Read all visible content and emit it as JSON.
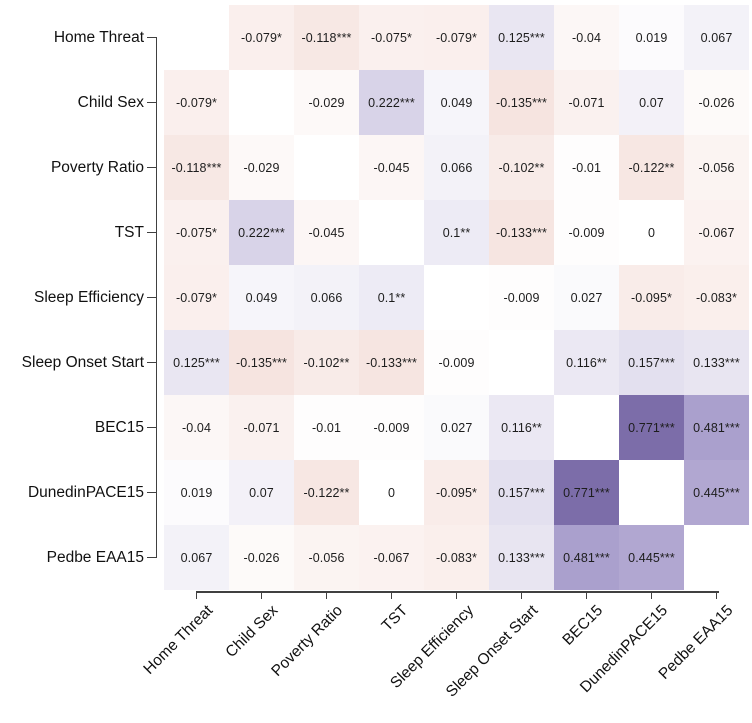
{
  "chart_data": {
    "type": "heatmap",
    "title": "",
    "subtitle": "",
    "xlabel": "",
    "ylabel": "",
    "legend": "none",
    "description": "Correlation matrix heatmap; blank white diagonal; asterisks denote significance (* p<.05, ** p<.01, *** p<.001); negative correlations shaded warm red-pink, positive correlations shaded purple.",
    "variables": [
      "Home Threat",
      "Child Sex",
      "Poverty Ratio",
      "TST",
      "Sleep Efficiency",
      "Sleep Onset Start",
      "BEC15",
      "DunedinPACE15",
      "Pedbe EAA15"
    ],
    "values": [
      [
        null,
        -0.079,
        -0.118,
        -0.075,
        -0.079,
        0.125,
        -0.04,
        0.019,
        0.067
      ],
      [
        -0.079,
        null,
        -0.029,
        0.222,
        0.049,
        -0.135,
        -0.071,
        0.07,
        -0.026
      ],
      [
        -0.118,
        -0.029,
        null,
        -0.045,
        0.066,
        -0.102,
        -0.01,
        -0.122,
        -0.056
      ],
      [
        -0.075,
        0.222,
        -0.045,
        null,
        0.1,
        -0.133,
        -0.009,
        0,
        -0.067
      ],
      [
        -0.079,
        0.049,
        0.066,
        0.1,
        null,
        -0.009,
        0.027,
        -0.095,
        -0.083
      ],
      [
        0.125,
        -0.135,
        -0.102,
        -0.133,
        -0.009,
        null,
        0.116,
        0.157,
        0.133
      ],
      [
        -0.04,
        -0.071,
        -0.01,
        -0.009,
        0.027,
        0.116,
        null,
        0.771,
        0.481
      ],
      [
        0.019,
        0.07,
        -0.122,
        0,
        -0.095,
        0.157,
        0.771,
        null,
        0.445
      ],
      [
        0.067,
        -0.026,
        -0.056,
        -0.067,
        -0.083,
        0.133,
        0.481,
        0.445,
        null
      ]
    ],
    "labels": [
      [
        "",
        "-0.079*",
        "-0.118***",
        "-0.075*",
        "-0.079*",
        "0.125***",
        "-0.04",
        "0.019",
        "0.067"
      ],
      [
        "-0.079*",
        "",
        "-0.029",
        "0.222***",
        "0.049",
        "-0.135***",
        "-0.071",
        "0.07",
        "-0.026"
      ],
      [
        "-0.118***",
        "-0.029",
        "",
        "-0.045",
        "0.066",
        "-0.102**",
        "-0.01",
        "-0.122**",
        "-0.056"
      ],
      [
        "-0.075*",
        "0.222***",
        "-0.045",
        "",
        "0.1**",
        "-0.133***",
        "-0.009",
        "0",
        "-0.067"
      ],
      [
        "-0.079*",
        "0.049",
        "0.066",
        "0.1**",
        "",
        "-0.009",
        "0.027",
        "-0.095*",
        "-0.083*"
      ],
      [
        "0.125***",
        "-0.135***",
        "-0.102**",
        "-0.133***",
        "-0.009",
        "",
        "0.116**",
        "0.157***",
        "0.133***"
      ],
      [
        "-0.04",
        "-0.071",
        "-0.01",
        "-0.009",
        "0.027",
        "0.116**",
        "",
        "0.771***",
        "0.481***"
      ],
      [
        "0.019",
        "0.07",
        "-0.122**",
        "0",
        "-0.095*",
        "0.157***",
        "0.771***",
        "",
        "0.445***"
      ],
      [
        "0.067",
        "-0.026",
        "-0.056",
        "-0.067",
        "-0.083*",
        "0.133***",
        "0.481***",
        "0.445***",
        ""
      ]
    ],
    "palette": {
      "positive_stops": [
        {
          "t": 0,
          "color": "#ffffff"
        },
        {
          "t": 0.5,
          "color": "#a79ccb"
        },
        {
          "t": 0.75,
          "color": "#8073ac"
        },
        {
          "t": 1,
          "color": "#542788"
        }
      ],
      "negative_stops": [
        {
          "t": 0,
          "color": "#ffffff"
        },
        {
          "t": 1,
          "color": "#bd3a1a"
        }
      ],
      "diagonal_color": "#ffffff",
      "cell_text_color": "#1d1d1d",
      "axis_text_color": "#111111",
      "axis_line_color": "#404040",
      "background_color": "#ffffff"
    }
  }
}
